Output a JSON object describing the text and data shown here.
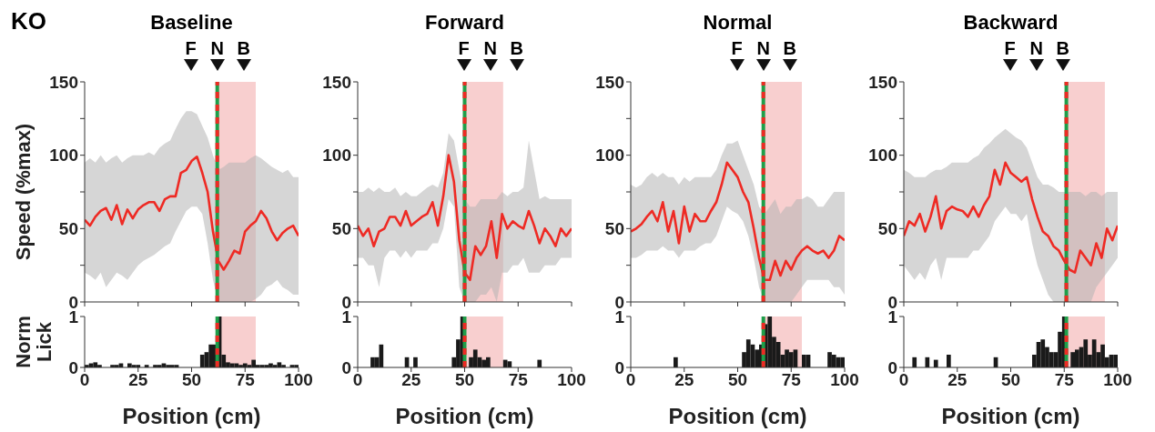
{
  "chart_data": [
    {
      "type": "line",
      "title": "Baseline",
      "ylabel": "Speed (%max)",
      "x": [
        0,
        2.5,
        5,
        7.5,
        10,
        12.5,
        15,
        17.5,
        20,
        22.5,
        25,
        27.5,
        30,
        32.5,
        35,
        37.5,
        40,
        42.5,
        45,
        47.5,
        50,
        52.5,
        55,
        57.5,
        60,
        62.5,
        65,
        67.5,
        70,
        72.5,
        75,
        77.5,
        80,
        82.5,
        85,
        87.5,
        90,
        92.5,
        95,
        97.5,
        100
      ],
      "series": [
        {
          "color": "#ee2a24",
          "values": [
            56,
            52,
            58,
            62,
            64,
            56,
            66,
            53,
            63,
            57,
            63,
            66,
            68,
            68,
            62,
            70,
            72,
            72,
            88,
            90,
            96,
            99,
            88,
            75,
            48,
            28,
            22,
            28,
            35,
            33,
            48,
            52,
            55,
            62,
            57,
            48,
            42,
            47,
            50,
            52,
            45
          ],
          "lower": [
            20,
            18,
            15,
            20,
            10,
            15,
            20,
            18,
            15,
            20,
            25,
            28,
            30,
            32,
            35,
            38,
            40,
            48,
            55,
            62,
            65,
            65,
            60,
            40,
            15,
            0,
            0,
            0,
            0,
            0,
            0,
            0,
            2,
            5,
            10,
            12,
            15,
            10,
            8,
            5,
            5
          ],
          "upper": [
            95,
            98,
            95,
            100,
            95,
            98,
            100,
            95,
            98,
            100,
            100,
            100,
            102,
            100,
            105,
            108,
            110,
            118,
            125,
            130,
            130,
            128,
            120,
            112,
            100,
            90,
            92,
            95,
            95,
            95,
            95,
            98,
            100,
            98,
            95,
            92,
            90,
            88,
            90,
            85,
            85
          ]
        }
      ],
      "xlim": [
        0,
        100
      ],
      "xticks": [
        0,
        25,
        50,
        75,
        100
      ],
      "ylim": [
        0,
        150
      ],
      "yticks": [
        0,
        {
          "value": 25,
          "label": null
        },
        50,
        {
          "value": 75,
          "label": null
        },
        100,
        {
          "value": 125,
          "label": null
        },
        150
      ],
      "tick_labels": "y",
      "ref_lines": [
        {
          "axis": "x",
          "value": 62,
          "color": "#1f9e4a"
        },
        {
          "axis": "x",
          "value": 62,
          "color": "#ee2a24",
          "line_style": "dashed"
        }
      ],
      "bands": [
        {
          "axis": "x",
          "from": 62,
          "to": 80,
          "color": "#f8cfcf"
        }
      ],
      "annotations": [
        "KO",
        "F",
        "N",
        "B"
      ]
    },
    {
      "type": "histogram",
      "ylabel": "Norm Lick",
      "xlabel": "Position (cm)",
      "bins": [
        0,
        2,
        4,
        6,
        8,
        10,
        12,
        14,
        16,
        18,
        20,
        22,
        24,
        26,
        28,
        30,
        32,
        34,
        36,
        38,
        40,
        42,
        44,
        46,
        48,
        50,
        52,
        54,
        56,
        58,
        60,
        62,
        64,
        66,
        68,
        70,
        72,
        74,
        76,
        78,
        80,
        82,
        84,
        86,
        88,
        90,
        92,
        94,
        96,
        98,
        100
      ],
      "values": [
        0.05,
        0.08,
        0.1,
        0.05,
        0,
        0,
        0.05,
        0.05,
        0.08,
        0,
        0.08,
        0.05,
        0.05,
        0,
        0.05,
        0,
        0.05,
        0.05,
        0.08,
        0.05,
        0.05,
        0.05,
        0,
        0,
        0,
        0,
        0,
        0.25,
        0.3,
        0.45,
        0.45,
        1,
        0.25,
        0.1,
        0.08,
        0.08,
        0.05,
        0.08,
        0.05,
        0.15,
        0.05,
        0.05,
        0.05,
        0.08,
        0.05,
        0.1,
        0.05,
        0,
        0.05,
        0.05
      ],
      "color": "#1a1a1a",
      "xlim": [
        0,
        100
      ],
      "xticks": [
        0,
        25,
        50,
        75,
        100
      ],
      "ylim": [
        0,
        1
      ],
      "yticks": [
        0,
        1
      ],
      "ref_lines": [
        {
          "axis": "x",
          "value": 62,
          "color": "#1f9e4a"
        },
        {
          "axis": "x",
          "value": 62,
          "color": "#ee2a24",
          "line_style": "dashed"
        }
      ],
      "bands": [
        {
          "axis": "x",
          "from": 62,
          "to": 80,
          "color": "#f8cfcf"
        }
      ]
    },
    {
      "type": "line",
      "title": "Forward",
      "x": [
        0,
        2.5,
        5,
        7.5,
        10,
        12.5,
        15,
        17.5,
        20,
        22.5,
        25,
        27.5,
        30,
        32.5,
        35,
        37.5,
        40,
        42.5,
        45,
        47.5,
        50,
        52.5,
        55,
        57.5,
        60,
        62.5,
        65,
        67.5,
        70,
        72.5,
        75,
        77.5,
        80,
        82.5,
        85,
        87.5,
        90,
        92.5,
        95,
        97.5,
        100
      ],
      "series": [
        {
          "color": "#ee2a24",
          "values": [
            52,
            45,
            50,
            38,
            48,
            50,
            58,
            58,
            52,
            62,
            52,
            55,
            58,
            60,
            68,
            52,
            72,
            100,
            82,
            42,
            20,
            15,
            38,
            32,
            38,
            55,
            30,
            60,
            50,
            55,
            52,
            50,
            62,
            52,
            40,
            50,
            45,
            38,
            50,
            45,
            50
          ],
          "lower": [
            30,
            30,
            25,
            25,
            10,
            30,
            35,
            35,
            30,
            35,
            30,
            35,
            35,
            35,
            40,
            40,
            50,
            70,
            65,
            10,
            0,
            0,
            0,
            5,
            5,
            10,
            0,
            20,
            20,
            25,
            25,
            30,
            20,
            20,
            20,
            25,
            25,
            25,
            30,
            30,
            30
          ],
          "upper": [
            75,
            75,
            78,
            75,
            78,
            75,
            75,
            78,
            72,
            75,
            72,
            72,
            75,
            78,
            80,
            78,
            88,
            115,
            110,
            90,
            70,
            65,
            65,
            70,
            70,
            70,
            70,
            75,
            72,
            75,
            75,
            78,
            110,
            90,
            70,
            72,
            70,
            70,
            70,
            70,
            70
          ]
        }
      ],
      "xlim": [
        0,
        100
      ],
      "xticks": [
        0,
        25,
        50,
        75,
        100
      ],
      "ylim": [
        0,
        150
      ],
      "yticks": [
        0,
        {
          "value": 25,
          "label": null
        },
        50,
        {
          "value": 75,
          "label": null
        },
        100,
        {
          "value": 125,
          "label": null
        },
        150
      ],
      "tick_labels": "y",
      "ref_lines": [
        {
          "axis": "x",
          "value": 50,
          "color": "#1f9e4a"
        },
        {
          "axis": "x",
          "value": 50,
          "color": "#ee2a24",
          "line_style": "dashed"
        }
      ],
      "bands": [
        {
          "axis": "x",
          "from": 50,
          "to": 68,
          "color": "#f8cfcf"
        }
      ],
      "annotations": [
        "F",
        "N",
        "B"
      ]
    },
    {
      "type": "histogram",
      "xlabel": "Position (cm)",
      "bins": [
        0,
        2,
        4,
        6,
        8,
        10,
        12,
        14,
        16,
        18,
        20,
        22,
        24,
        26,
        28,
        30,
        32,
        34,
        36,
        38,
        40,
        42,
        44,
        46,
        48,
        50,
        52,
        54,
        56,
        58,
        60,
        62,
        64,
        66,
        68,
        70,
        72,
        74,
        76,
        78,
        80,
        82,
        84,
        86,
        88,
        90,
        92,
        94,
        96,
        98,
        100
      ],
      "values": [
        0,
        0,
        0,
        0.2,
        0.2,
        0.45,
        0,
        0,
        0,
        0,
        0,
        0.2,
        0,
        0.2,
        0,
        0,
        0,
        0,
        0,
        0,
        0,
        0,
        0.2,
        0.55,
        1,
        0,
        0.2,
        0.35,
        0.2,
        0.15,
        0.2,
        0,
        0,
        0,
        0.15,
        0.12,
        0,
        0,
        0,
        0,
        0,
        0,
        0.15,
        0,
        0,
        0,
        0,
        0,
        0,
        0
      ],
      "color": "#1a1a1a",
      "xlim": [
        0,
        100
      ],
      "xticks": [
        0,
        25,
        50,
        75,
        100
      ],
      "ylim": [
        0,
        1
      ],
      "yticks": [
        0,
        1
      ],
      "ref_lines": [
        {
          "axis": "x",
          "value": 50,
          "color": "#1f9e4a"
        },
        {
          "axis": "x",
          "value": 50,
          "color": "#ee2a24",
          "line_style": "dashed"
        }
      ],
      "bands": [
        {
          "axis": "x",
          "from": 50,
          "to": 68,
          "color": "#f8cfcf"
        }
      ]
    },
    {
      "type": "line",
      "title": "Normal",
      "x": [
        0,
        2.5,
        5,
        7.5,
        10,
        12.5,
        15,
        17.5,
        20,
        22.5,
        25,
        27.5,
        30,
        32.5,
        35,
        37.5,
        40,
        42.5,
        45,
        47.5,
        50,
        52.5,
        55,
        57.5,
        60,
        62.5,
        65,
        67.5,
        70,
        72.5,
        75,
        77.5,
        80,
        82.5,
        85,
        87.5,
        90,
        92.5,
        95,
        97.5,
        100
      ],
      "series": [
        {
          "color": "#ee2a24",
          "values": [
            48,
            50,
            53,
            58,
            62,
            55,
            68,
            48,
            62,
            40,
            65,
            48,
            60,
            55,
            55,
            62,
            68,
            80,
            95,
            90,
            85,
            75,
            68,
            50,
            30,
            15,
            15,
            28,
            18,
            28,
            22,
            30,
            35,
            38,
            35,
            33,
            35,
            30,
            35,
            45,
            42
          ],
          "lower": [
            30,
            30,
            32,
            35,
            35,
            35,
            38,
            35,
            35,
            30,
            35,
            35,
            35,
            38,
            40,
            40,
            45,
            55,
            65,
            62,
            60,
            55,
            45,
            30,
            10,
            0,
            0,
            0,
            0,
            0,
            0,
            5,
            10,
            15,
            15,
            15,
            15,
            15,
            10,
            10,
            5
          ],
          "upper": [
            80,
            78,
            80,
            85,
            88,
            85,
            88,
            85,
            85,
            80,
            85,
            82,
            85,
            85,
            85,
            85,
            90,
            100,
            108,
            108,
            110,
            100,
            90,
            80,
            65,
            60,
            65,
            70,
            60,
            65,
            65,
            70,
            70,
            72,
            70,
            65,
            65,
            70,
            75,
            75,
            75
          ]
        }
      ],
      "xlim": [
        0,
        100
      ],
      "xticks": [
        0,
        25,
        50,
        75,
        100
      ],
      "ylim": [
        0,
        150
      ],
      "yticks": [
        0,
        {
          "value": 25,
          "label": null
        },
        50,
        {
          "value": 75,
          "label": null
        },
        100,
        {
          "value": 125,
          "label": null
        },
        150
      ],
      "tick_labels": "y",
      "ref_lines": [
        {
          "axis": "x",
          "value": 62,
          "color": "#1f9e4a"
        },
        {
          "axis": "x",
          "value": 62,
          "color": "#ee2a24",
          "line_style": "dashed"
        }
      ],
      "bands": [
        {
          "axis": "x",
          "from": 62,
          "to": 80,
          "color": "#f8cfcf"
        }
      ],
      "annotations": [
        "F",
        "N",
        "B"
      ]
    },
    {
      "type": "histogram",
      "xlabel": "Position (cm)",
      "bins": [
        0,
        2,
        4,
        6,
        8,
        10,
        12,
        14,
        16,
        18,
        20,
        22,
        24,
        26,
        28,
        30,
        32,
        34,
        36,
        38,
        40,
        42,
        44,
        46,
        48,
        50,
        52,
        54,
        56,
        58,
        60,
        62,
        64,
        66,
        68,
        70,
        72,
        74,
        76,
        78,
        80,
        82,
        84,
        86,
        88,
        90,
        92,
        94,
        96,
        98,
        100
      ],
      "values": [
        0,
        0,
        0,
        0,
        0,
        0,
        0,
        0,
        0,
        0,
        0.2,
        0,
        0,
        0,
        0,
        0,
        0,
        0,
        0,
        0,
        0,
        0,
        0,
        0,
        0,
        0,
        0.3,
        0.55,
        0.45,
        0.35,
        0.45,
        0.85,
        1,
        0.6,
        0.5,
        0.25,
        0.35,
        0.3,
        0.35,
        0,
        0.25,
        0.25,
        0,
        0,
        0,
        0,
        0.3,
        0.25,
        0.2,
        0.2
      ],
      "color": "#1a1a1a",
      "xlim": [
        0,
        100
      ],
      "xticks": [
        0,
        25,
        50,
        75,
        100
      ],
      "ylim": [
        0,
        1
      ],
      "yticks": [
        0,
        1
      ],
      "ref_lines": [
        {
          "axis": "x",
          "value": 62,
          "color": "#1f9e4a"
        },
        {
          "axis": "x",
          "value": 62,
          "color": "#ee2a24",
          "line_style": "dashed"
        }
      ],
      "bands": [
        {
          "axis": "x",
          "from": 62,
          "to": 80,
          "color": "#f8cfcf"
        }
      ]
    },
    {
      "type": "line",
      "title": "Backward",
      "x": [
        0,
        2.5,
        5,
        7.5,
        10,
        12.5,
        15,
        17.5,
        20,
        22.5,
        25,
        27.5,
        30,
        32.5,
        35,
        37.5,
        40,
        42.5,
        45,
        47.5,
        50,
        52.5,
        55,
        57.5,
        60,
        62.5,
        65,
        67.5,
        70,
        72.5,
        75,
        77.5,
        80,
        82.5,
        85,
        87.5,
        90,
        92.5,
        95,
        97.5,
        100
      ],
      "series": [
        {
          "color": "#ee2a24",
          "values": [
            45,
            55,
            52,
            60,
            48,
            58,
            72,
            50,
            62,
            65,
            63,
            62,
            58,
            65,
            58,
            66,
            72,
            90,
            80,
            95,
            88,
            85,
            82,
            85,
            70,
            58,
            48,
            45,
            38,
            35,
            28,
            22,
            20,
            35,
            30,
            25,
            40,
            30,
            50,
            42,
            52
          ],
          "lower": [
            25,
            20,
            15,
            20,
            15,
            25,
            30,
            15,
            30,
            30,
            30,
            30,
            30,
            35,
            35,
            40,
            45,
            55,
            60,
            65,
            60,
            60,
            55,
            60,
            40,
            25,
            15,
            5,
            0,
            0,
            0,
            0,
            0,
            0,
            0,
            0,
            10,
            15,
            20,
            25,
            30
          ],
          "upper": [
            90,
            88,
            85,
            85,
            85,
            88,
            90,
            90,
            92,
            95,
            95,
            95,
            95,
            98,
            100,
            105,
            108,
            112,
            115,
            118,
            115,
            112,
            110,
            105,
            95,
            85,
            80,
            80,
            78,
            75,
            75,
            75,
            75,
            75,
            72,
            75,
            75,
            72,
            75,
            75,
            75
          ]
        }
      ],
      "xlim": [
        0,
        100
      ],
      "xticks": [
        0,
        25,
        50,
        75,
        100
      ],
      "ylim": [
        0,
        150
      ],
      "yticks": [
        0,
        {
          "value": 25,
          "label": null
        },
        50,
        {
          "value": 75,
          "label": null
        },
        100,
        {
          "value": 125,
          "label": null
        },
        150
      ],
      "tick_labels": "y",
      "ref_lines": [
        {
          "axis": "x",
          "value": 76,
          "color": "#1f9e4a"
        },
        {
          "axis": "x",
          "value": 76,
          "color": "#ee2a24",
          "line_style": "dashed"
        }
      ],
      "bands": [
        {
          "axis": "x",
          "from": 76,
          "to": 94,
          "color": "#f8cfcf"
        }
      ],
      "annotations": [
        "F",
        "N",
        "B"
      ]
    },
    {
      "type": "histogram",
      "xlabel": "Position (cm)",
      "bins": [
        0,
        2,
        4,
        6,
        8,
        10,
        12,
        14,
        16,
        18,
        20,
        22,
        24,
        26,
        28,
        30,
        32,
        34,
        36,
        38,
        40,
        42,
        44,
        46,
        48,
        50,
        52,
        54,
        56,
        58,
        60,
        62,
        64,
        66,
        68,
        70,
        72,
        74,
        76,
        78,
        80,
        82,
        84,
        86,
        88,
        90,
        92,
        94,
        96,
        98,
        100
      ],
      "values": [
        0,
        0,
        0.2,
        0,
        0,
        0.2,
        0,
        0.15,
        0,
        0,
        0.25,
        0,
        0,
        0,
        0,
        0,
        0,
        0,
        0,
        0,
        0,
        0.2,
        0,
        0,
        0,
        0,
        0,
        0,
        0,
        0,
        0.25,
        0.5,
        0.55,
        0.4,
        0.3,
        0.3,
        0.7,
        1,
        0,
        0.3,
        0.35,
        0.4,
        0.55,
        0.25,
        0.55,
        0.3,
        0.45,
        0.2,
        0.25,
        0.25
      ],
      "color": "#1a1a1a",
      "xlim": [
        0,
        100
      ],
      "xticks": [
        0,
        25,
        50,
        75,
        100
      ],
      "ylim": [
        0,
        1
      ],
      "yticks": [
        0,
        1
      ],
      "ref_lines": [
        {
          "axis": "x",
          "value": 76,
          "color": "#1f9e4a"
        },
        {
          "axis": "x",
          "value": 76,
          "color": "#ee2a24",
          "line_style": "dashed"
        }
      ],
      "bands": [
        {
          "axis": "x",
          "from": 76,
          "to": 94,
          "color": "#f8cfcf"
        }
      ]
    }
  ]
}
